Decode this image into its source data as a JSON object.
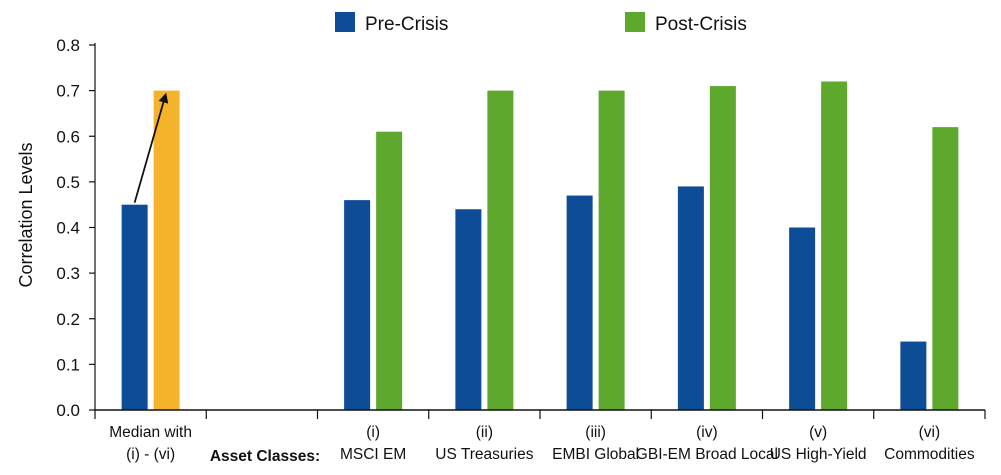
{
  "chart_data": {
    "type": "bar",
    "title": "",
    "ylabel": "Correlation Levels",
    "xlabel": "",
    "x_prefix_label": "Asset Classes:",
    "ylim": [
      0,
      0.8
    ],
    "yticks": [
      "0.0",
      "0.1",
      "0.2",
      "0.3",
      "0.4",
      "0.5",
      "0.6",
      "0.7",
      "0.8"
    ],
    "grid": false,
    "legend_position": "top",
    "categories": [
      [
        "Median with",
        "(i) - (vi)"
      ],
      [
        "",
        ""
      ],
      [
        "(i)",
        "MSCI EM"
      ],
      [
        "(ii)",
        "US Treasuries"
      ],
      [
        "(iii)",
        "EMBI Global"
      ],
      [
        "(iv)",
        "GBI-EM Broad Local"
      ],
      [
        "(v)",
        "US High-Yield"
      ],
      [
        "(vi)",
        "Commodities"
      ]
    ],
    "series": [
      {
        "name": "Pre-Crisis",
        "color": "#0d4c97",
        "values": [
          0.45,
          null,
          0.46,
          0.44,
          0.47,
          0.49,
          0.4,
          0.15
        ]
      },
      {
        "name": "Post-Crisis",
        "color": "#5ea82e",
        "values": [
          0.7,
          null,
          0.61,
          0.7,
          0.7,
          0.71,
          0.72,
          0.62
        ]
      }
    ],
    "highlight": {
      "category_index": 0,
      "series_index": 1,
      "color": "#f5b22b"
    },
    "annotation": {
      "type": "arrow",
      "from": {
        "category_index": 0,
        "series": "Pre-Crisis"
      },
      "to": {
        "category_index": 0,
        "series": "Post-Crisis"
      }
    }
  }
}
